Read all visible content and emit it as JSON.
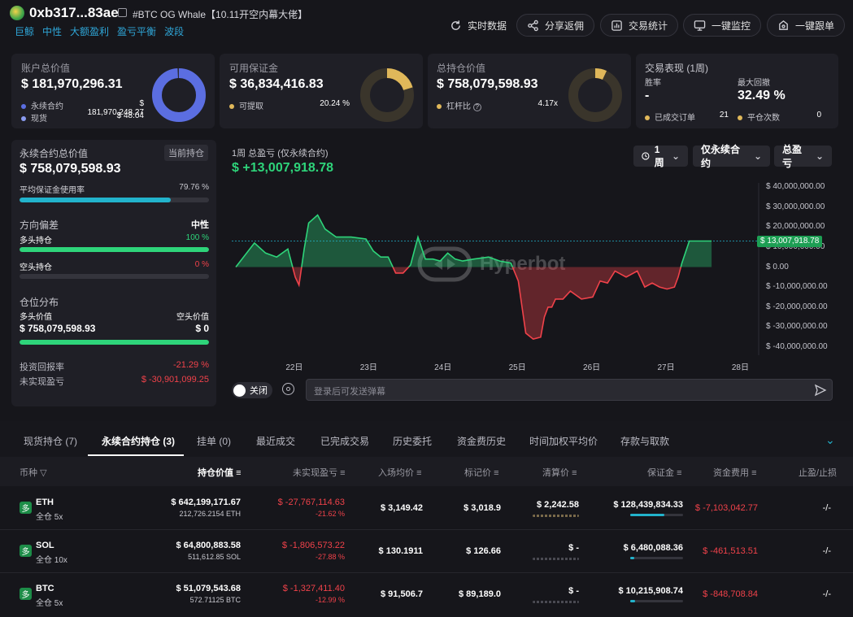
{
  "header": {
    "address": "0xb317...83ae",
    "label": "#BTC OG Whale【10.11开空内幕大佬】",
    "tags": [
      "巨鲸",
      "中性",
      "大额盈利",
      "盈亏平衡",
      "波段"
    ],
    "buttons": [
      {
        "label": "实时数据",
        "icon": "refresh-icon"
      },
      {
        "label": "分享返佣",
        "icon": "share-icon"
      },
      {
        "label": "交易统计",
        "icon": "stats-icon"
      },
      {
        "label": "一键监控",
        "icon": "monitor-icon"
      },
      {
        "label": "一键跟单",
        "icon": "follow-icon"
      }
    ]
  },
  "colors": {
    "accent_blue": "#5b6ee1",
    "accent_gold": "#e0b85a",
    "green": "#2ed47a",
    "red": "#f0424a",
    "cyan": "#22b3cc"
  },
  "account": {
    "title": "账户总价值",
    "value": "$ 181,970,296.31",
    "rows": [
      {
        "label": "永续合约",
        "value": "$ 181,970,248.27"
      },
      {
        "label": "现货",
        "value": "$ 48.04"
      }
    ],
    "donut_fraction": 0.99
  },
  "margin": {
    "title": "可用保证金",
    "value": "$ 36,834,416.83",
    "row_label": "可提取",
    "row_value": "20.24 %",
    "donut_fraction": 0.2024
  },
  "position_total": {
    "title": "总持仓价值",
    "value": "$ 758,079,598.93",
    "row_label": "杠杆比",
    "row_value": "4.17x",
    "donut_fraction": 0.07
  },
  "performance": {
    "title": "交易表现 (1周)",
    "winrate_label": "胜率",
    "winrate_value": "-",
    "drawdown_label": "最大回撤",
    "drawdown_value": "32.49 %",
    "closed_label": "已成交订单",
    "closed_value": "21",
    "close_count_label": "平仓次数",
    "close_count_value": "0"
  },
  "perp": {
    "title": "永续合约总价值",
    "current_badge": "当前持仓",
    "value": "$ 758,079,598.93",
    "usage_label": "平均保证金使用率",
    "usage_value": "79.76 %",
    "usage_fraction": 0.7976,
    "bias_label": "方向偏差",
    "bias_value": "中性",
    "long_label": "多头持仓",
    "long_value": "100 %",
    "long_fraction": 1.0,
    "short_label": "空头持仓",
    "short_value": "0 %",
    "short_fraction": 0.0,
    "dist_label": "仓位分布",
    "long_val_label": "多头价值",
    "short_val_label": "空头价值",
    "long_val": "$ 758,079,598.93",
    "short_val": "$ 0",
    "dist_fraction": 1.0,
    "roi_label": "投资回报率",
    "roi_value": "-21.29 %",
    "upnl_label": "未实现盈亏",
    "upnl_value": "$ -30,901,099.25"
  },
  "chart_panel": {
    "title": "1周 总盈亏 (仅永续合约)",
    "value": "$ +13,007,918.78",
    "dropdowns": [
      "1周",
      "仅永续合约",
      "总盈亏"
    ],
    "current_label": "$ 13,007,918.78",
    "watermark": "Hyperbot",
    "toggle_label": "关闭",
    "danmaku_placeholder": "登录后可发送弹幕"
  },
  "chart_data": {
    "type": "line",
    "title": "1周 总盈亏 (仅永续合约)",
    "x_ticks": [
      "22日",
      "23日",
      "24日",
      "25日",
      "26日",
      "27日",
      "28日"
    ],
    "y_ticks": [
      "$ 40,000,000.00",
      "$ 30,000,000.00",
      "$ 20,000,000.00",
      "$ 10,000,000.00",
      "$ 0.00",
      "$ -10,000,000.00",
      "$ -20,000,000.00",
      "$ -30,000,000.00",
      "$ -40,000,000.00"
    ],
    "ylim": [
      -40000000,
      40000000
    ],
    "xlim": [
      0,
      7
    ],
    "x": [
      0,
      0.25,
      0.4,
      0.55,
      0.7,
      0.8,
      0.85,
      0.92,
      0.98,
      1.1,
      1.2,
      1.35,
      1.55,
      1.75,
      1.85,
      1.95,
      2.05,
      2.15,
      2.25,
      2.35,
      2.45,
      2.55,
      2.65,
      2.75,
      2.85,
      2.95,
      3.05,
      3.2,
      3.4,
      3.55,
      3.7,
      3.8,
      3.9,
      4.0,
      4.1,
      4.15,
      4.2,
      4.25,
      4.3,
      4.4,
      4.5,
      4.65,
      4.8,
      4.9,
      5.0,
      5.1,
      5.25,
      5.4,
      5.5,
      5.6,
      5.7,
      5.8,
      5.9,
      5.95,
      6.0,
      6.1,
      6.3,
      6.4
    ],
    "y": [
      0,
      12000000,
      7000000,
      5000000,
      9000000,
      -5000000,
      -9000000,
      9000000,
      22000000,
      26000000,
      19000000,
      15000000,
      15000000,
      14000000,
      8000000,
      5000000,
      5000000,
      -3000000,
      -3000000,
      1000000,
      15000000,
      4000000,
      4000000,
      3000000,
      7000000,
      4000000,
      3000000,
      4000000,
      5000000,
      3000000,
      2000000,
      -7000000,
      -33000000,
      -36000000,
      -35000000,
      -25000000,
      -20000000,
      -20000000,
      -16000000,
      -16000000,
      -12000000,
      -16000000,
      -15000000,
      -7000000,
      -8000000,
      -2000000,
      -5000000,
      -2000000,
      -10000000,
      -8000000,
      -10000000,
      -11000000,
      -10000000,
      -5000000,
      2000000,
      13000000,
      13000000,
      13000000
    ],
    "grid": false
  },
  "tabs": [
    {
      "label": "现货持仓 (7)",
      "active": false
    },
    {
      "label": "永续合约持仓 (3)",
      "active": true
    },
    {
      "label": "挂单 (0)",
      "active": false
    },
    {
      "label": "最近成交",
      "active": false
    },
    {
      "label": "已完成交易",
      "active": false
    },
    {
      "label": "历史委托",
      "active": false
    },
    {
      "label": "资金费历史",
      "active": false
    },
    {
      "label": "时间加权平均价",
      "active": false
    },
    {
      "label": "存款与取款",
      "active": false
    }
  ],
  "table": {
    "headers": [
      "币种",
      "持仓价值",
      "未实现盈亏",
      "入场均价",
      "标记价",
      "清算价",
      "保证金",
      "资金费用",
      "止盈/止损"
    ],
    "rows": [
      {
        "coin": "ETH",
        "mode": "全仓 5x",
        "value": "$ 642,199,171.67",
        "qty": "212,726.2154 ETH",
        "upnl": "$ -27,767,114.63",
        "upnl_pct": "-21.62 %",
        "entry": "$ 3,149.42",
        "mark": "$ 3,018.9",
        "liq": "$ 2,242.58",
        "margin": "$ 128,439,834.33",
        "margin_fraction": 0.65,
        "funding": "$ -7,103,042.77",
        "tpsl": "-/-"
      },
      {
        "coin": "SOL",
        "mode": "全仓 10x",
        "value": "$ 64,800,883.58",
        "qty": "511,612.85 SOL",
        "upnl": "$ -1,806,573.22",
        "upnl_pct": "-27.88 %",
        "entry": "$ 130.1911",
        "mark": "$ 126.66",
        "liq": "$ -",
        "margin": "$ 6,480,088.36",
        "margin_fraction": 0.07,
        "funding": "$ -461,513.51",
        "tpsl": "-/-"
      },
      {
        "coin": "BTC",
        "mode": "全仓 5x",
        "value": "$ 51,079,543.68",
        "qty": "572.71125 BTC",
        "upnl": "$ -1,327,411.40",
        "upnl_pct": "-12.99 %",
        "entry": "$ 91,506.7",
        "mark": "$ 89,189.0",
        "liq": "$ -",
        "margin": "$ 10,215,908.74",
        "margin_fraction": 0.09,
        "funding": "$ -848,708.84",
        "tpsl": "-/-"
      }
    ]
  }
}
